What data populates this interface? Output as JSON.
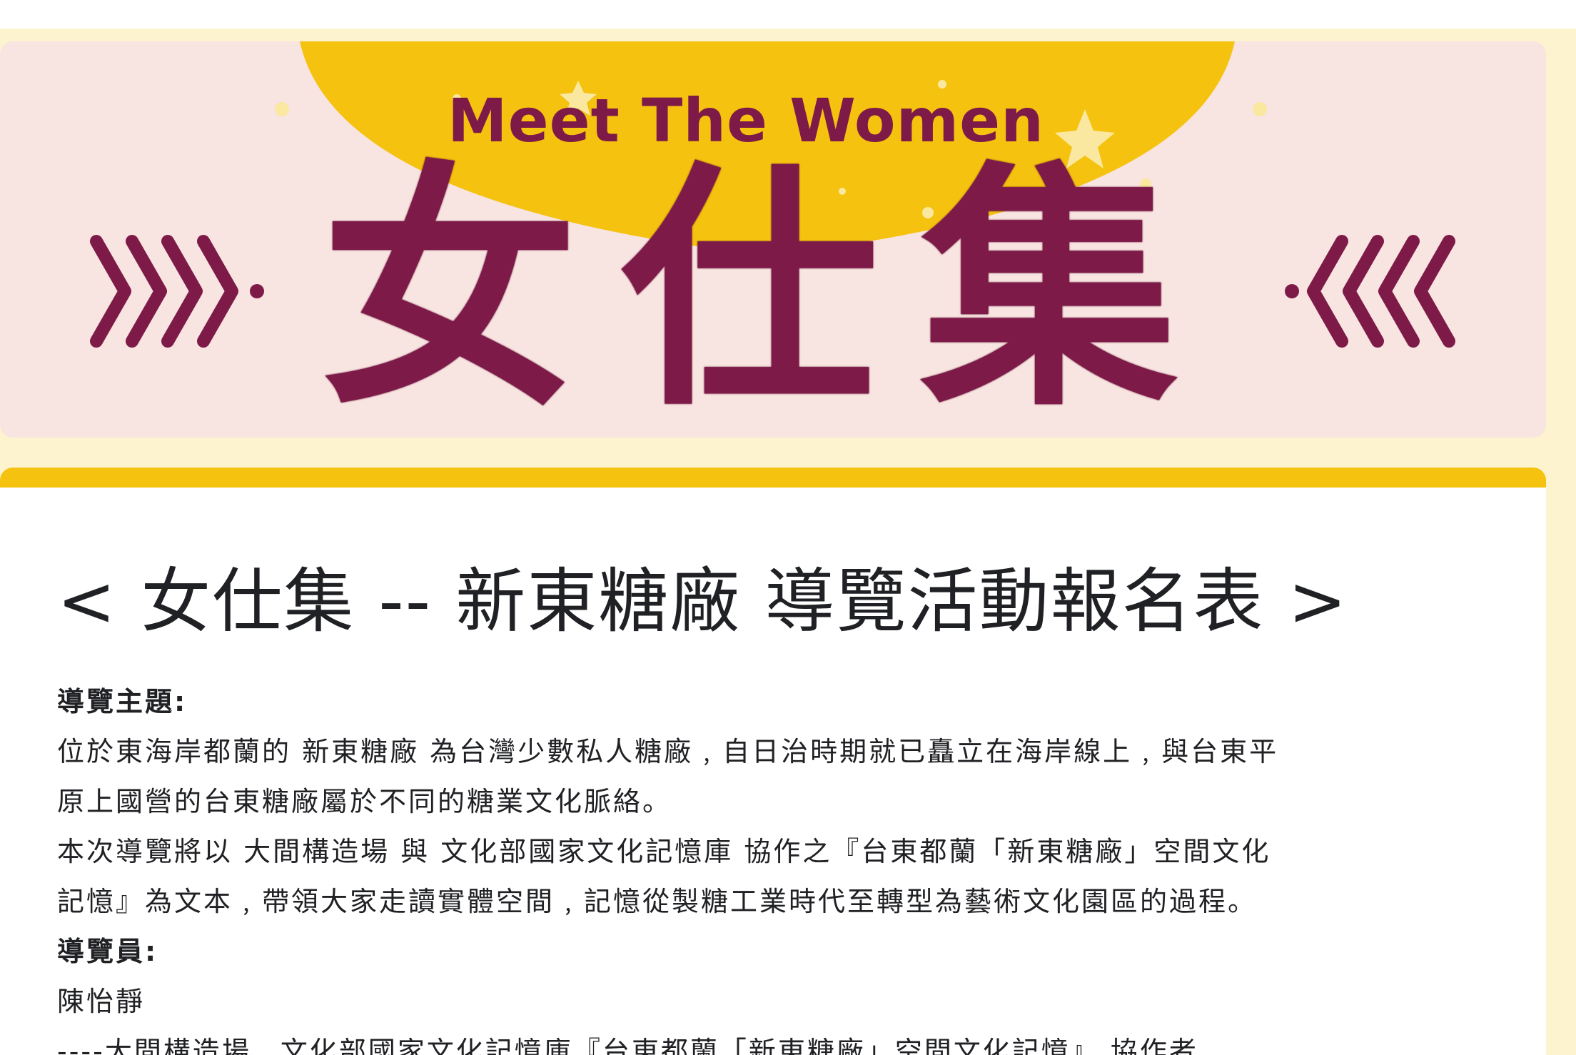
{
  "header": {
    "subtitle": "Meet The Women",
    "title": "女仕集",
    "colors": {
      "background": "#f8e4e0",
      "accent_yellow": "#f4c20f",
      "title_color": "#7d1a48"
    }
  },
  "form": {
    "title": "< 女仕集 -- 新東糖廠 導覽活動報名表 >",
    "description": {
      "topic_label": "導覽主題:",
      "topic_line1": "位於東海岸都蘭的 新東糖廠 為台灣少數私人糖廠﹐自日治時期就已矗立在海岸線上﹐與台東平",
      "topic_line2": "原上國營的台東糖廠屬於不同的糖業文化脈絡。",
      "topic_line3": "本次導覽將以 大間構造場 與 文化部國家文化記憶庫 協作之『台東都蘭「新東糖廠」空間文化",
      "topic_line4": "記憶』為文本﹐帶領大家走讀實體空間﹐記憶從製糖工業時代至轉型為藝術文化園區的過程。",
      "guide_label": "導覽員:",
      "guide_name": "陳怡靜",
      "guide_credit": "----大間構造場﹐文化部國家文化記憶庫『台東都蘭「新東糖廠」空間文化記憶』 協作者"
    }
  }
}
